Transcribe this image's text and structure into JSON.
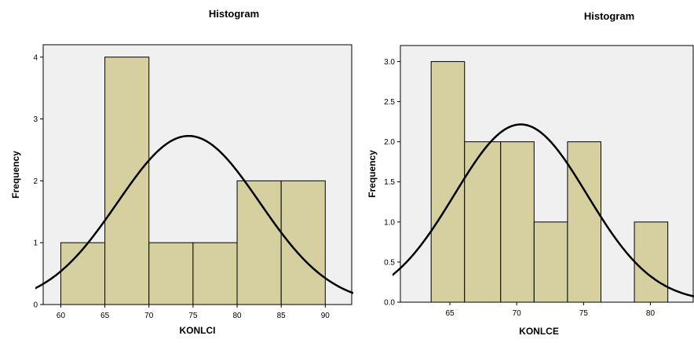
{
  "chart_data": [
    {
      "type": "bar",
      "subtype": "histogram",
      "title": "Histogram",
      "xlabel": "KONLCI",
      "ylabel": "Frequency",
      "bins": [
        {
          "start": 60,
          "end": 65,
          "count": 1
        },
        {
          "start": 65,
          "end": 70,
          "count": 4
        },
        {
          "start": 70,
          "end": 75,
          "count": 1
        },
        {
          "start": 75,
          "end": 80,
          "count": 1
        },
        {
          "start": 80,
          "end": 85,
          "count": 2
        },
        {
          "start": 85,
          "end": 90,
          "count": 2
        }
      ],
      "xlim": [
        58,
        93
      ],
      "ylim": [
        0,
        4.2
      ],
      "xticks": [
        60,
        65,
        70,
        75,
        80,
        85,
        90
      ],
      "xtick_labels": [
        "60",
        "65",
        "70",
        "75",
        "80",
        "85",
        "90"
      ],
      "yticks": [
        0,
        1,
        2,
        3,
        4
      ],
      "ytick_labels": [
        "0",
        "1",
        "2",
        "3",
        "4"
      ],
      "normal_curve": {
        "mean": 74.5,
        "sd": 8.05,
        "n": 11,
        "bin_width": 5
      },
      "bar_color": "#d6d0a0",
      "plot_background": "#f0f0f0",
      "grid": false,
      "legend": "none"
    },
    {
      "type": "bar",
      "subtype": "histogram",
      "title": "Histogram",
      "xlabel": "KONLCE",
      "ylabel": "Frequency",
      "bins": [
        {
          "start": 63.6,
          "end": 66.1,
          "count": 3
        },
        {
          "start": 66.1,
          "end": 68.8,
          "count": 2
        },
        {
          "start": 68.8,
          "end": 71.3,
          "count": 2
        },
        {
          "start": 71.3,
          "end": 73.8,
          "count": 1
        },
        {
          "start": 73.8,
          "end": 76.3,
          "count": 2
        },
        {
          "start": 78.8,
          "end": 81.3,
          "count": 1
        }
      ],
      "xlim": [
        61.3,
        83.2
      ],
      "ylim": [
        0,
        3.2
      ],
      "xticks": [
        65,
        70,
        75,
        80
      ],
      "xtick_labels": [
        "65",
        "70",
        "75",
        "80"
      ],
      "yticks": [
        0,
        0.5,
        1,
        1.5,
        2,
        2.5,
        3
      ],
      "ytick_labels": [
        "0.0",
        "0.5",
        "1.0",
        "1.5",
        "2.0",
        "2.5",
        "3.0"
      ],
      "normal_curve": {
        "mean": 70.3,
        "sd": 4.95,
        "n": 11,
        "bin_width": 2.5
      },
      "bar_color": "#d6d0a0",
      "plot_background": "#f0f0f0",
      "grid": false,
      "legend": "none"
    }
  ]
}
